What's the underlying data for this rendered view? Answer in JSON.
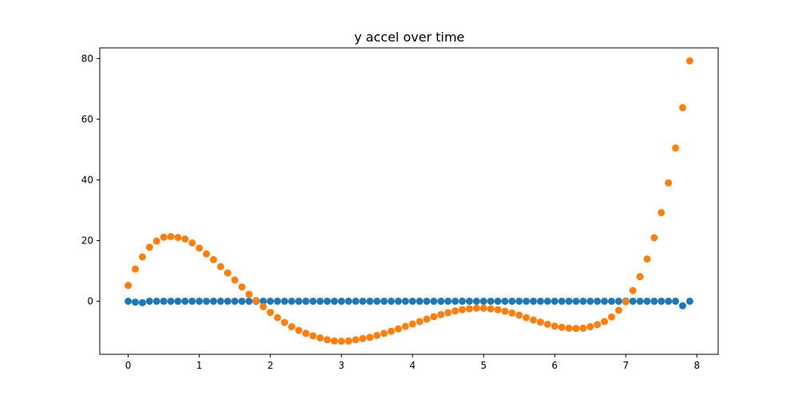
{
  "chart_data": {
    "type": "scatter",
    "title": "y accel over time",
    "xlabel": "",
    "ylabel": "",
    "xlim": [
      -0.4,
      8.3
    ],
    "ylim": [
      -17.5,
      83.5
    ],
    "xticks": [
      0,
      1,
      2,
      3,
      4,
      5,
      6,
      7,
      8
    ],
    "yticks": [
      0,
      20,
      40,
      60,
      80
    ],
    "grid": false,
    "legend": "none",
    "x": [
      0.0,
      0.1,
      0.2,
      0.3,
      0.4,
      0.5,
      0.6,
      0.7,
      0.8,
      0.9,
      1.0,
      1.1,
      1.2,
      1.3,
      1.4,
      1.5,
      1.6,
      1.7,
      1.8,
      1.9,
      2.0,
      2.1,
      2.2,
      2.3,
      2.4,
      2.5,
      2.6,
      2.7,
      2.8,
      2.9,
      3.0,
      3.1,
      3.2,
      3.3,
      3.4,
      3.5,
      3.6,
      3.7,
      3.8,
      3.9,
      4.0,
      4.1,
      4.2,
      4.3,
      4.4,
      4.5,
      4.6,
      4.7,
      4.8,
      4.9,
      5.0,
      5.1,
      5.2,
      5.3,
      5.4,
      5.5,
      5.6,
      5.7,
      5.8,
      5.9,
      6.0,
      6.1,
      6.2,
      6.3,
      6.4,
      6.5,
      6.6,
      6.7,
      6.8,
      6.9,
      7.0,
      7.1,
      7.2,
      7.3,
      7.4,
      7.5,
      7.6,
      7.7,
      7.8,
      7.9
    ],
    "series": [
      {
        "color": "#1f77b4",
        "values": [
          0.0,
          -0.3,
          -0.5,
          0.0,
          0.0,
          0.0,
          0.0,
          0.0,
          0.0,
          0.0,
          0.0,
          0.0,
          0.0,
          0.0,
          0.0,
          0.0,
          0.0,
          0.0,
          0.0,
          0.0,
          0.0,
          0.0,
          0.0,
          0.0,
          0.0,
          0.0,
          0.0,
          0.0,
          0.0,
          0.0,
          0.0,
          0.0,
          0.0,
          0.0,
          0.0,
          0.0,
          0.0,
          0.0,
          0.0,
          0.0,
          0.0,
          0.0,
          0.0,
          0.0,
          0.0,
          0.0,
          0.0,
          0.0,
          0.0,
          0.0,
          0.0,
          0.0,
          0.0,
          0.0,
          0.0,
          0.0,
          0.0,
          0.0,
          0.0,
          0.0,
          0.0,
          0.0,
          0.0,
          0.0,
          0.0,
          0.0,
          0.0,
          0.0,
          0.0,
          0.0,
          0.0,
          0.0,
          0.0,
          0.0,
          0.0,
          0.0,
          0.0,
          0.0,
          -1.5,
          0.0
        ]
      },
      {
        "color": "#ff7f0e",
        "values": [
          5.2,
          10.6,
          14.6,
          17.8,
          19.8,
          21.1,
          21.3,
          21.0,
          20.5,
          19.2,
          17.5,
          15.6,
          13.7,
          11.4,
          9.3,
          7.0,
          4.7,
          2.3,
          0.2,
          -1.8,
          -3.7,
          -5.4,
          -7.0,
          -8.4,
          -9.6,
          -10.6,
          -11.4,
          -12.1,
          -12.7,
          -13.1,
          -13.2,
          -13.1,
          -12.7,
          -12.3,
          -11.9,
          -11.3,
          -10.6,
          -9.9,
          -9.1,
          -8.3,
          -7.5,
          -6.7,
          -5.9,
          -5.1,
          -4.4,
          -3.8,
          -3.2,
          -2.8,
          -2.5,
          -2.3,
          -2.3,
          -2.5,
          -2.8,
          -3.3,
          -3.9,
          -4.6,
          -5.4,
          -6.2,
          -6.9,
          -7.6,
          -8.2,
          -8.6,
          -8.9,
          -9.0,
          -8.9,
          -8.4,
          -7.7,
          -6.7,
          -5.2,
          -3.0,
          -0.2,
          3.5,
          8.1,
          13.9,
          20.9,
          29.2,
          39.0,
          50.5,
          63.8,
          79.2
        ]
      }
    ]
  }
}
